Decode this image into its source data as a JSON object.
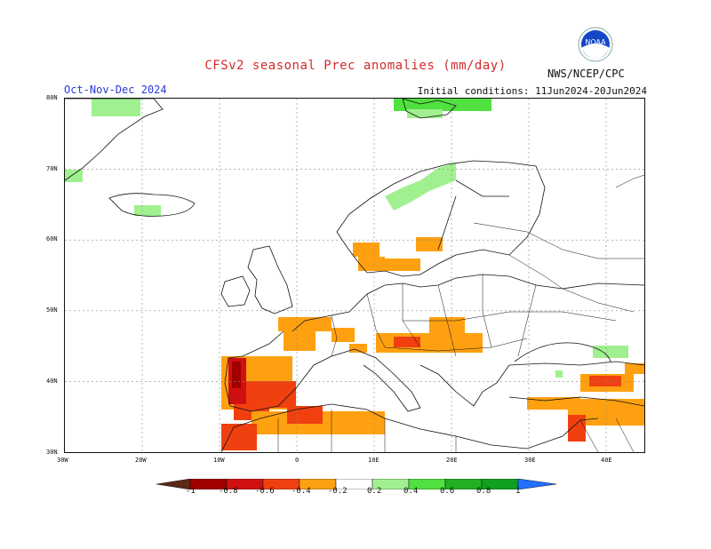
{
  "header": {
    "title": "CFSv2 seasonal Prec anomalies (mm/day)",
    "season": "Oct-Nov-Dec 2024",
    "initial_conditions": "Initial conditions: 11Jun2024-20Jun2024",
    "org": "NWS/NCEP/CPC",
    "logo_text": "NOAA"
  },
  "axes": {
    "lat_labels": [
      "80N",
      "70N",
      "60N",
      "50N",
      "40N",
      "30N"
    ],
    "lon_labels": [
      "30W",
      "20W",
      "10W",
      "0",
      "10E",
      "20E",
      "30E",
      "40E"
    ]
  },
  "legend": {
    "labels": [
      "-1",
      "-0.8",
      "-0.6",
      "-0.4",
      "-0.2",
      "0.2",
      "0.4",
      "0.6",
      "0.8",
      "1"
    ],
    "colors": [
      "#5a2a14",
      "#a00000",
      "#d01010",
      "#f04010",
      "#ffa010",
      "#ffffff",
      "#a0f090",
      "#50e040",
      "#20b020",
      "#10a020",
      "#2070ff"
    ]
  },
  "colors": {
    "dry_strong": "#c00000",
    "dry_mid": "#f04010",
    "dry_weak": "#ffa010",
    "wet_weak": "#a0f090",
    "wet_mid": "#50e040",
    "wet_strong": "#20b020"
  }
}
